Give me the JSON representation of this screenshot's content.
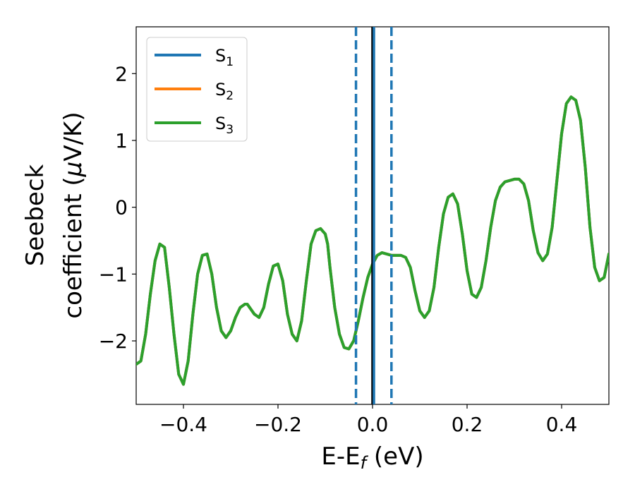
{
  "chart_data": {
    "type": "line",
    "xlabel": "E-E",
    "xlabel_sub": "f",
    "xlabel_unit": " (eV)",
    "ylabel_line1": "Seebeck",
    "ylabel_line2": "coefficient  (",
    "ylabel_mu": "μ",
    "ylabel_unit": "V/K)",
    "xlim": [
      -0.5,
      0.5
    ],
    "ylim": [
      -2.95,
      2.7
    ],
    "xticks": [
      -0.4,
      -0.2,
      0.0,
      0.2,
      0.4
    ],
    "xtick_labels": [
      "−0.4",
      "−0.2",
      "0.0",
      "0.2",
      "0.4"
    ],
    "yticks": [
      -2,
      -1,
      0,
      1,
      2
    ],
    "ytick_labels": [
      "−2",
      "−1",
      "0",
      "1",
      "2"
    ],
    "legend_position": "top-left",
    "series": [
      {
        "name": "S",
        "name_sub": "1",
        "color": "#1f77b4"
      },
      {
        "name": "S",
        "name_sub": "2",
        "color": "#ff7f0e"
      },
      {
        "name": "S",
        "name_sub": "3",
        "color": "#2ca02c"
      }
    ],
    "x": [
      -0.5,
      -0.49,
      -0.48,
      -0.47,
      -0.46,
      -0.45,
      -0.44,
      -0.43,
      -0.42,
      -0.41,
      -0.4,
      -0.39,
      -0.38,
      -0.37,
      -0.36,
      -0.35,
      -0.34,
      -0.33,
      -0.32,
      -0.31,
      -0.3,
      -0.29,
      -0.28,
      -0.27,
      -0.265,
      -0.26,
      -0.25,
      -0.24,
      -0.23,
      -0.22,
      -0.21,
      -0.2,
      -0.19,
      -0.18,
      -0.17,
      -0.16,
      -0.15,
      -0.14,
      -0.13,
      -0.12,
      -0.11,
      -0.1,
      -0.095,
      -0.09,
      -0.08,
      -0.07,
      -0.06,
      -0.05,
      -0.04,
      -0.035,
      -0.03,
      -0.02,
      -0.01,
      0.0,
      0.01,
      0.02,
      0.03,
      0.04,
      0.05,
      0.06,
      0.07,
      0.08,
      0.09,
      0.1,
      0.11,
      0.12,
      0.13,
      0.14,
      0.15,
      0.16,
      0.17,
      0.18,
      0.19,
      0.2,
      0.21,
      0.22,
      0.23,
      0.24,
      0.25,
      0.26,
      0.27,
      0.28,
      0.29,
      0.3,
      0.31,
      0.32,
      0.33,
      0.34,
      0.35,
      0.36,
      0.37,
      0.38,
      0.39,
      0.4,
      0.41,
      0.42,
      0.43,
      0.44,
      0.45,
      0.46,
      0.47,
      0.48,
      0.49,
      0.5
    ],
    "y": [
      -2.35,
      -2.3,
      -1.9,
      -1.3,
      -0.8,
      -0.55,
      -0.6,
      -1.2,
      -1.9,
      -2.5,
      -2.65,
      -2.3,
      -1.6,
      -1.0,
      -0.72,
      -0.7,
      -1.0,
      -1.5,
      -1.85,
      -1.95,
      -1.85,
      -1.65,
      -1.5,
      -1.45,
      -1.45,
      -1.5,
      -1.6,
      -1.65,
      -1.5,
      -1.15,
      -0.88,
      -0.85,
      -1.1,
      -1.6,
      -1.9,
      -2.0,
      -1.7,
      -1.1,
      -0.55,
      -0.35,
      -0.32,
      -0.4,
      -0.55,
      -0.9,
      -1.5,
      -1.9,
      -2.1,
      -2.12,
      -2.0,
      -1.85,
      -1.7,
      -1.35,
      -1.05,
      -0.85,
      -0.72,
      -0.68,
      -0.7,
      -0.72,
      -0.72,
      -0.72,
      -0.75,
      -0.9,
      -1.25,
      -1.55,
      -1.65,
      -1.55,
      -1.2,
      -0.6,
      -0.1,
      0.15,
      0.2,
      0.05,
      -0.4,
      -0.95,
      -1.3,
      -1.35,
      -1.2,
      -0.8,
      -0.3,
      0.1,
      0.3,
      0.38,
      0.4,
      0.42,
      0.42,
      0.35,
      0.1,
      -0.35,
      -0.68,
      -0.8,
      -0.7,
      -0.3,
      0.4,
      1.1,
      1.55,
      1.65,
      1.6,
      1.3,
      0.6,
      -0.3,
      -0.9,
      -1.1,
      -1.05,
      -0.7
    ],
    "vlines": [
      {
        "x": 0.0,
        "color": "#000000",
        "style": "solid"
      },
      {
        "x": 0.003,
        "color": "#1f77b4",
        "style": "solid"
      },
      {
        "x": -0.035,
        "color": "#1f77b4",
        "style": "dashed"
      },
      {
        "x": 0.04,
        "color": "#1f77b4",
        "style": "dashed"
      }
    ]
  }
}
